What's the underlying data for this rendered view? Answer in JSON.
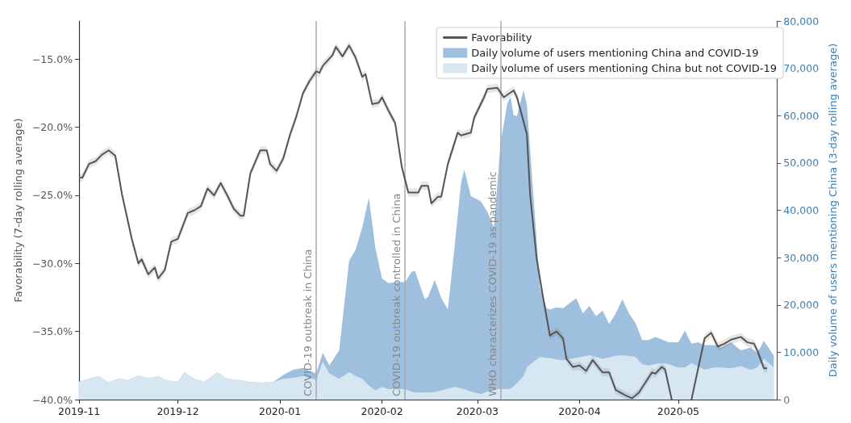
{
  "chart_data": {
    "type": "line",
    "ylabel": "Favorability (7-day rolling average)",
    "y2label": "Daily volume of users mentioning China (3-day rolling average)",
    "xlim": [
      "2019-11-01",
      "2020-05-31"
    ],
    "xticks": [
      "2019-11",
      "2019-12",
      "2020-01",
      "2020-02",
      "2020-03",
      "2020-04",
      "2020-05"
    ],
    "ylim": [
      -40,
      -12.2
    ],
    "yticks": [
      {
        "value": -40,
        "label": "−40.0%"
      },
      {
        "value": -35,
        "label": "−35.0%"
      },
      {
        "value": -30,
        "label": "−30.0%"
      },
      {
        "value": -25,
        "label": "−25.0%"
      },
      {
        "value": -20,
        "label": "−20.0%"
      },
      {
        "value": -15,
        "label": "−15.0%"
      }
    ],
    "y2lim": [
      0,
      80000
    ],
    "y2ticks": [
      0,
      {
        "value": 10000,
        "label": "10,000"
      },
      {
        "value": 20000,
        "label": "20,000"
      },
      {
        "value": 30000,
        "label": "30,000"
      },
      {
        "value": 40000,
        "label": "40,000"
      },
      {
        "value": 50000,
        "label": "50,000"
      },
      {
        "value": 60000,
        "label": "60,000"
      },
      {
        "value": 70000,
        "label": "70,000"
      },
      {
        "value": 80000,
        "label": "80,000"
      }
    ],
    "stacked": true,
    "legend": "top right",
    "grid": false,
    "ref_lines": [
      {
        "axis": "x",
        "value": "2020-01-12",
        "label": "COVID-19 outbreak in China",
        "color": "#aaaaaa"
      },
      {
        "axis": "x",
        "value": "2020-02-08",
        "label": "COVID-19 outbreak controlled in China",
        "color": "#aaaaaa"
      },
      {
        "axis": "x",
        "value": "2020-03-08",
        "label": "WHO characterizes COVID-19 as pandemic",
        "color": "#aaaaaa"
      }
    ],
    "series": [
      {
        "name": "Favorability",
        "color": "#555555",
        "x": [
          "2019-11-01",
          "2019-11-02",
          "2019-11-04",
          "2019-11-06",
          "2019-11-08",
          "2019-11-10",
          "2019-11-12",
          "2019-11-14",
          "2019-11-17",
          "2019-11-19",
          "2019-11-20",
          "2019-11-22",
          "2019-11-24",
          "2019-11-25",
          "2019-11-27",
          "2019-11-29",
          "2019-12-01",
          "2019-12-04",
          "2019-12-06",
          "2019-12-08",
          "2019-12-10",
          "2019-12-12",
          "2019-12-14",
          "2019-12-16",
          "2019-12-18",
          "2019-12-20",
          "2019-12-21",
          "2019-12-23",
          "2019-12-26",
          "2019-12-28",
          "2019-12-29",
          "2019-12-31",
          "2020-01-02",
          "2020-01-04",
          "2020-01-06",
          "2020-01-08",
          "2020-01-10",
          "2020-01-12",
          "2020-01-13",
          "2020-01-14",
          "2020-01-17",
          "2020-01-18",
          "2020-01-20",
          "2020-01-22",
          "2020-01-24",
          "2020-01-26",
          "2020-01-27",
          "2020-01-29",
          "2020-01-31",
          "2020-02-01",
          "2020-02-03",
          "2020-02-05",
          "2020-02-07",
          "2020-02-09",
          "2020-02-12",
          "2020-02-13",
          "2020-02-15",
          "2020-02-16",
          "2020-02-18",
          "2020-02-19",
          "2020-02-21",
          "2020-02-24",
          "2020-02-25",
          "2020-02-28",
          "2020-02-29",
          "2020-03-03",
          "2020-03-04",
          "2020-03-07",
          "2020-03-09",
          "2020-03-12",
          "2020-03-13",
          "2020-03-16",
          "2020-03-17",
          "2020-03-19",
          "2020-03-21",
          "2020-03-23",
          "2020-03-25",
          "2020-03-27",
          "2020-03-28",
          "2020-03-30",
          "2020-04-01",
          "2020-04-03",
          "2020-04-05",
          "2020-04-08",
          "2020-04-10",
          "2020-04-12",
          "2020-04-15",
          "2020-04-17",
          "2020-04-19",
          "2020-04-23",
          "2020-04-24",
          "2020-04-26",
          "2020-04-27",
          "2020-04-29",
          "2020-05-01",
          "2020-05-05",
          "2020-05-09",
          "2020-05-11",
          "2020-05-13",
          "2020-05-15",
          "2020-05-17",
          "2020-05-20",
          "2020-05-22",
          "2020-05-24",
          "2020-05-25",
          "2020-05-27",
          "2020-05-28"
        ],
        "values": [
          -23.7,
          -23.7,
          -22.7,
          -22.5,
          -22.0,
          -21.7,
          -22.1,
          -24.9,
          -28.2,
          -30.0,
          -29.7,
          -30.8,
          -30.3,
          -31.1,
          -30.5,
          -28.4,
          -28.2,
          -26.3,
          -26.1,
          -25.8,
          -24.5,
          -25.0,
          -24.1,
          -25.0,
          -26.0,
          -26.5,
          -26.5,
          -23.4,
          -21.7,
          -21.7,
          -22.7,
          -23.2,
          -22.3,
          -20.6,
          -19.2,
          -17.5,
          -16.6,
          -15.9,
          -16.0,
          -15.5,
          -14.7,
          -14.1,
          -14.8,
          -14.0,
          -14.9,
          -16.3,
          -16.1,
          -18.3,
          -18.2,
          -17.8,
          -18.8,
          -19.7,
          -22.9,
          -24.8,
          -24.8,
          -24.3,
          -24.3,
          -25.6,
          -25.1,
          -25.1,
          -22.7,
          -20.4,
          -20.6,
          -20.4,
          -19.3,
          -17.8,
          -17.2,
          -17.1,
          -17.8,
          -17.3,
          -17.8,
          -20.5,
          -25.0,
          -29.7,
          -32.6,
          -35.3,
          -35.0,
          -35.5,
          -37.0,
          -37.6,
          -37.5,
          -37.9,
          -37.1,
          -38.0,
          -38.0,
          -39.3,
          -39.7,
          -39.9,
          -39.5,
          -38.0,
          -38.1,
          -37.6,
          -37.8,
          -40.0,
          null,
          -40.0,
          -35.5,
          -35.1,
          -36.1,
          -35.9,
          -35.6,
          -35.4,
          -35.8,
          -35.9,
          -36.4,
          -37.7,
          -37.7
        ],
        "lower": [
          -24.0,
          -24.0,
          -23.0,
          -22.8,
          -22.3,
          -22.0,
          -22.4,
          -25.2,
          -28.5,
          -30.3,
          -30.0,
          -31.1,
          -30.6,
          -31.4,
          -30.8,
          -28.7,
          -28.5,
          -26.6,
          -26.4,
          -26.1,
          -24.8,
          -25.3,
          -24.4,
          -25.3,
          -26.3,
          -26.8,
          -26.8,
          -23.7,
          -22.0,
          -22.0,
          -23.0,
          -23.5,
          -22.6,
          -20.9,
          -19.5,
          -17.8,
          -16.9,
          -16.2,
          -16.3,
          -15.8,
          -15.0,
          -14.4,
          -15.1,
          -14.3,
          -15.2,
          -16.6,
          -16.4,
          -18.6,
          -18.5,
          -18.1,
          -19.1,
          -20.0,
          -23.2,
          -25.1,
          -25.1,
          -24.6,
          -24.6,
          -25.9,
          -25.4,
          -25.4,
          -23.0,
          -20.7,
          -20.9,
          -20.7,
          -19.6,
          -18.1,
          -17.5,
          -17.4,
          -18.1,
          -17.6,
          -18.1,
          -20.8,
          -25.3,
          -30.0,
          -32.9,
          -35.6,
          -35.3,
          -35.8,
          -37.3,
          -37.9,
          -37.8,
          -38.2,
          -37.4,
          -38.3,
          -38.3,
          -39.6,
          -40.0,
          -40.0,
          -39.8,
          -38.3,
          -38.4,
          -37.9,
          -38.1,
          -40.0,
          null,
          -40.0,
          -35.8,
          -35.4,
          -36.4,
          -36.2,
          -35.9,
          -35.7,
          -36.1,
          -36.2,
          -36.7,
          -38.0,
          -38.0
        ],
        "upper": [
          -23.4,
          -23.4,
          -22.4,
          -22.2,
          -21.7,
          -21.4,
          -21.8,
          -24.6,
          -27.9,
          -29.7,
          -29.4,
          -30.5,
          -30.0,
          -30.8,
          -30.2,
          -28.1,
          -27.9,
          -26.0,
          -25.8,
          -25.5,
          -24.2,
          -24.7,
          -23.8,
          -24.7,
          -25.7,
          -26.2,
          -26.2,
          -23.1,
          -21.4,
          -21.4,
          -22.4,
          -22.9,
          -22.0,
          -20.3,
          -18.9,
          -17.2,
          -16.3,
          -15.6,
          -15.7,
          -15.2,
          -14.4,
          -13.8,
          -14.5,
          -13.7,
          -14.6,
          -16.0,
          -15.8,
          -18.0,
          -17.9,
          -17.5,
          -18.5,
          -19.4,
          -22.6,
          -24.5,
          -24.5,
          -24.0,
          -24.0,
          -25.3,
          -24.8,
          -24.8,
          -22.4,
          -20.1,
          -20.3,
          -20.1,
          -19.0,
          -17.5,
          -16.9,
          -16.8,
          -17.5,
          -17.0,
          -17.5,
          -20.2,
          -24.7,
          -29.4,
          -32.3,
          -35.0,
          -34.7,
          -35.2,
          -36.7,
          -37.3,
          -37.2,
          -37.6,
          -36.8,
          -37.7,
          -37.7,
          -39.0,
          -39.4,
          -39.6,
          -39.2,
          -37.7,
          -37.8,
          -37.3,
          -37.5,
          -39.7,
          null,
          -39.7,
          -35.2,
          -34.8,
          -35.8,
          -35.6,
          -35.3,
          -35.1,
          -35.5,
          -35.6,
          -36.1,
          -37.4,
          -37.4
        ]
      },
      {
        "name": "Daily volume of users mentioning China but not COVID-19",
        "type": "area",
        "axis": "y2",
        "color": "#d6e7f2",
        "x": [
          "2019-11-01",
          "2019-11-04",
          "2019-11-07",
          "2019-11-10",
          "2019-11-13",
          "2019-11-16",
          "2019-11-19",
          "2019-11-22",
          "2019-11-25",
          "2019-11-28",
          "2019-12-01",
          "2019-12-03",
          "2019-12-06",
          "2019-12-09",
          "2019-12-13",
          "2019-12-16",
          "2019-12-20",
          "2019-12-23",
          "2019-12-26",
          "2019-12-30",
          "2020-01-02",
          "2020-01-05",
          "2020-01-08",
          "2020-01-11",
          "2020-01-12",
          "2020-01-14",
          "2020-01-16",
          "2020-01-19",
          "2020-01-22",
          "2020-01-24",
          "2020-01-26",
          "2020-01-28",
          "2020-01-30",
          "2020-02-01",
          "2020-02-03",
          "2020-02-05",
          "2020-02-08",
          "2020-02-10",
          "2020-02-11",
          "2020-02-14",
          "2020-02-15",
          "2020-02-17",
          "2020-02-19",
          "2020-02-21",
          "2020-02-23",
          "2020-02-25",
          "2020-02-26",
          "2020-02-28",
          "2020-03-02",
          "2020-03-04",
          "2020-03-06",
          "2020-03-08",
          "2020-03-10",
          "2020-03-11",
          "2020-03-12",
          "2020-03-13",
          "2020-03-15",
          "2020-03-16",
          "2020-03-18",
          "2020-03-20",
          "2020-03-22",
          "2020-03-23",
          "2020-03-25",
          "2020-03-27",
          "2020-03-29",
          "2020-03-31",
          "2020-04-02",
          "2020-04-04",
          "2020-04-06",
          "2020-04-08",
          "2020-04-10",
          "2020-04-12",
          "2020-04-14",
          "2020-04-16",
          "2020-04-18",
          "2020-04-20",
          "2020-04-22",
          "2020-04-24",
          "2020-04-26",
          "2020-04-28",
          "2020-05-01",
          "2020-05-03",
          "2020-05-05",
          "2020-05-07",
          "2020-05-09",
          "2020-05-12",
          "2020-05-14",
          "2020-05-17",
          "2020-05-20",
          "2020-05-23",
          "2020-05-25",
          "2020-05-27",
          "2020-05-30"
        ],
        "values": [
          3800,
          4400,
          5000,
          3600,
          4500,
          4100,
          5100,
          4500,
          4900,
          4000,
          3800,
          5800,
          4400,
          3700,
          5800,
          4400,
          4100,
          3700,
          3600,
          3700,
          4400,
          4600,
          5000,
          4400,
          4100,
          8000,
          5500,
          4400,
          5800,
          5000,
          4400,
          3000,
          1900,
          2700,
          2200,
          2200,
          2200,
          1700,
          1500,
          1500,
          1500,
          1600,
          1900,
          2300,
          2700,
          2400,
          2200,
          1700,
          1200,
          1700,
          2200,
          2200,
          2200,
          2300,
          2800,
          3500,
          5000,
          6800,
          8000,
          9000,
          8800,
          8800,
          8500,
          8300,
          8600,
          8800,
          9100,
          9400,
          9000,
          8600,
          8900,
          9300,
          9400,
          9200,
          9000,
          7500,
          7200,
          7500,
          7700,
          7500,
          6800,
          6800,
          7700,
          7000,
          6300,
          6800,
          6800,
          6600,
          7100,
          6300,
          6800,
          8600,
          6800
        ]
      },
      {
        "name": "Daily volume of users mentioning China and COVID-19",
        "type": "area",
        "axis": "y2",
        "color": "#9ebfdd",
        "x": [
          "2019-11-01",
          "2019-11-04",
          "2019-11-07",
          "2019-11-10",
          "2019-11-13",
          "2019-11-16",
          "2019-11-19",
          "2019-11-22",
          "2019-11-25",
          "2019-11-28",
          "2019-12-01",
          "2019-12-03",
          "2019-12-06",
          "2019-12-09",
          "2019-12-13",
          "2019-12-16",
          "2019-12-20",
          "2019-12-23",
          "2019-12-26",
          "2019-12-30",
          "2020-01-02",
          "2020-01-05",
          "2020-01-08",
          "2020-01-11",
          "2020-01-12",
          "2020-01-14",
          "2020-01-16",
          "2020-01-19",
          "2020-01-22",
          "2020-01-24",
          "2020-01-26",
          "2020-01-28",
          "2020-01-30",
          "2020-02-01",
          "2020-02-03",
          "2020-02-05",
          "2020-02-08",
          "2020-02-10",
          "2020-02-11",
          "2020-02-14",
          "2020-02-15",
          "2020-02-17",
          "2020-02-19",
          "2020-02-21",
          "2020-02-23",
          "2020-02-25",
          "2020-02-26",
          "2020-02-28",
          "2020-03-02",
          "2020-03-04",
          "2020-03-06",
          "2020-03-08",
          "2020-03-10",
          "2020-03-11",
          "2020-03-12",
          "2020-03-13",
          "2020-03-15",
          "2020-03-16",
          "2020-03-18",
          "2020-03-20",
          "2020-03-22",
          "2020-03-23",
          "2020-03-25",
          "2020-03-27",
          "2020-03-29",
          "2020-03-31",
          "2020-04-02",
          "2020-04-04",
          "2020-04-06",
          "2020-04-08",
          "2020-04-10",
          "2020-04-12",
          "2020-04-14",
          "2020-04-16",
          "2020-04-18",
          "2020-04-20",
          "2020-04-22",
          "2020-04-24",
          "2020-04-26",
          "2020-04-28",
          "2020-05-01",
          "2020-05-03",
          "2020-05-05",
          "2020-05-07",
          "2020-05-09",
          "2020-05-12",
          "2020-05-14",
          "2020-05-17",
          "2020-05-20",
          "2020-05-23",
          "2020-05-25",
          "2020-05-27",
          "2020-05-30"
        ],
        "values": [
          0,
          0,
          0,
          0,
          0,
          0,
          0,
          0,
          0,
          0,
          0,
          0,
          0,
          0,
          0,
          0,
          0,
          0,
          0,
          0,
          800,
          1700,
          1700,
          1400,
          1400,
          1900,
          1700,
          6000,
          23500,
          26700,
          32000,
          39700,
          30100,
          22900,
          22400,
          22600,
          22600,
          25300,
          25700,
          19700,
          20200,
          23700,
          19600,
          16700,
          29300,
          43400,
          46400,
          41300,
          40700,
          38000,
          34200,
          51900,
          60200,
          61700,
          57300,
          56400,
          60400,
          55500,
          35000,
          14700,
          10500,
          10200,
          11000,
          11000,
          11800,
          12600,
          9100,
          10400,
          8600,
          10200,
          7100,
          8900,
          11800,
          9000,
          7200,
          5100,
          5400,
          5700,
          5000,
          4600,
          5300,
          7800,
          4100,
          5100,
          5200,
          4700,
          4200,
          5500,
          3300,
          4700,
          3100,
          3800,
          2500
        ]
      }
    ]
  }
}
